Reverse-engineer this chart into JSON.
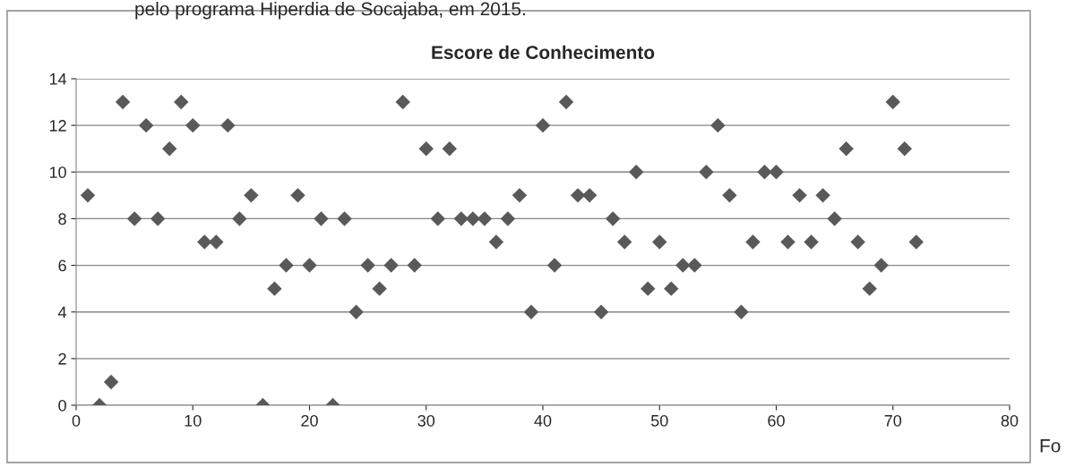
{
  "chart_data": {
    "type": "scatter",
    "title": "Escore de Conhecimento",
    "annotations": [
      "pelo programa Hiperdia de Socajaba, em 2015.",
      "Fo"
    ],
    "series": [
      {
        "color": "#595959",
        "x": [
          1,
          2,
          3,
          4,
          5,
          6,
          7,
          8,
          9,
          10,
          11,
          12,
          13,
          14,
          15,
          16,
          17,
          18,
          19,
          20,
          21,
          22,
          23,
          24,
          25,
          26,
          27,
          28,
          29,
          30,
          31,
          32,
          33,
          34,
          35,
          36,
          37,
          38,
          39,
          40,
          41,
          42,
          43,
          44,
          45,
          46,
          47,
          48,
          49,
          50,
          51,
          52,
          53,
          54,
          55,
          56,
          57,
          58,
          59,
          60,
          61,
          62,
          63,
          64,
          65,
          66,
          67,
          68,
          69,
          70,
          71,
          72
        ],
        "values": [
          9,
          0,
          1,
          13,
          8,
          12,
          8,
          11,
          13,
          12,
          7,
          7,
          12,
          8,
          9,
          0,
          5,
          6,
          9,
          6,
          8,
          0,
          8,
          4,
          6,
          5,
          6,
          13,
          6,
          11,
          8,
          11,
          8,
          8,
          8,
          7,
          8,
          9,
          4,
          12,
          6,
          13,
          9,
          9,
          4,
          8,
          7,
          10,
          5,
          7,
          5,
          6,
          6,
          10,
          12,
          9,
          4,
          7,
          10,
          10,
          7,
          9,
          7,
          9,
          8,
          11,
          7,
          5,
          6,
          13,
          11,
          7
        ]
      }
    ],
    "xlim": [
      0,
      80
    ],
    "xticks": [
      0,
      10,
      20,
      30,
      40,
      50,
      60,
      70,
      80
    ],
    "ylim": [
      0,
      14
    ],
    "yticks": [
      0,
      2,
      4,
      6,
      8,
      10,
      12,
      14
    ],
    "grid": "y",
    "marker": "diamond",
    "legend": false
  }
}
